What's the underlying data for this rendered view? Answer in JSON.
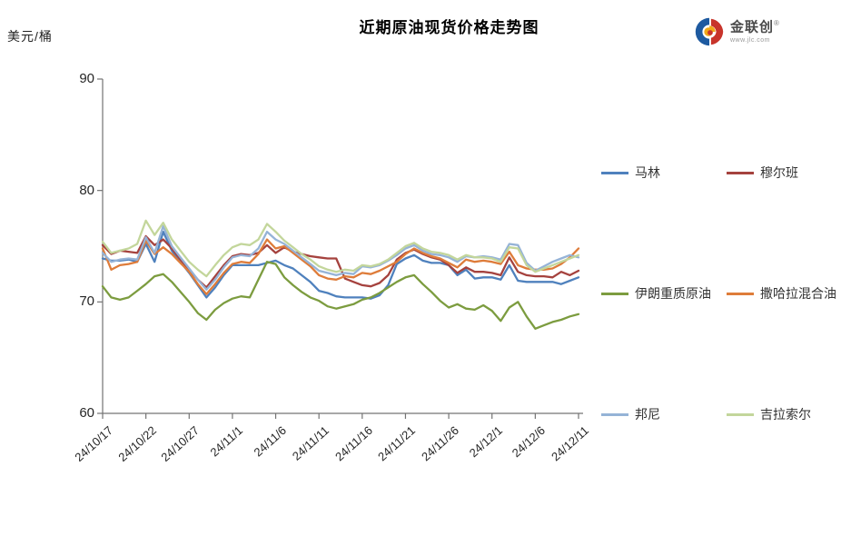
{
  "logo": {
    "brand": "金联创",
    "reg": "®",
    "site": "www.jlc.com"
  },
  "chart_data": {
    "type": "line",
    "title": "近期原油现货价格走势图",
    "unit_label": "美元/桶",
    "xlabel": "",
    "ylabel": "美元/桶",
    "ylim": [
      60,
      90
    ],
    "yticks": [
      60,
      70,
      80,
      90
    ],
    "grid": false,
    "legend_position": "right",
    "x_count": 56,
    "label_every": 5,
    "x_labels": [
      "24/10/17",
      "24/10/22",
      "24/10/27",
      "24/11/1",
      "24/11/6",
      "24/11/11",
      "24/11/16",
      "24/11/21",
      "24/11/26",
      "24/12/1",
      "24/12/6",
      "24/12/11"
    ],
    "axis_color": "#737373",
    "series": [
      {
        "name": "马林",
        "color": "#4F81BD",
        "values": [
          73.9,
          73.7,
          73.7,
          73.8,
          73.6,
          75.2,
          73.6,
          76.3,
          74.6,
          73.6,
          72.6,
          71.5,
          70.4,
          71.3,
          72.4,
          73.3,
          73.3,
          73.3,
          73.3,
          73.5,
          73.7,
          73.3,
          73.0,
          72.4,
          71.8,
          71.0,
          70.8,
          70.5,
          70.4,
          70.4,
          70.4,
          70.3,
          70.6,
          71.5,
          73.4,
          73.9,
          74.2,
          73.7,
          73.5,
          73.5,
          73.3,
          72.4,
          72.9,
          72.1,
          72.2,
          72.2,
          72.0,
          73.3,
          71.9,
          71.8,
          71.8,
          71.8,
          71.8,
          71.6,
          71.9,
          72.2
        ]
      },
      {
        "name": "穆尔班",
        "color": "#A5423E",
        "values": [
          75.1,
          74.3,
          74.6,
          74.5,
          74.4,
          75.9,
          75.1,
          75.6,
          74.8,
          73.8,
          72.9,
          72.0,
          71.3,
          72.3,
          73.3,
          74.1,
          74.3,
          74.2,
          74.4,
          75.1,
          74.4,
          74.9,
          74.5,
          74.3,
          74.1,
          74.0,
          73.9,
          73.9,
          72.1,
          71.8,
          71.5,
          71.4,
          71.7,
          72.4,
          73.8,
          74.4,
          74.7,
          74.3,
          74.0,
          73.8,
          73.3,
          72.6,
          73.1,
          72.7,
          72.7,
          72.6,
          72.4,
          74.0,
          72.7,
          72.4,
          72.3,
          72.3,
          72.2,
          72.7,
          72.4,
          72.8
        ]
      },
      {
        "name": "伊朗重质原油",
        "color": "#7C9C3F",
        "values": [
          71.4,
          70.4,
          70.2,
          70.4,
          71.0,
          71.6,
          72.3,
          72.5,
          71.8,
          70.9,
          70.0,
          69.0,
          68.4,
          69.3,
          69.9,
          70.3,
          70.5,
          70.4,
          72.0,
          73.6,
          73.4,
          72.2,
          71.5,
          70.9,
          70.4,
          70.1,
          69.6,
          69.4,
          69.6,
          69.8,
          70.2,
          70.4,
          70.8,
          71.3,
          71.8,
          72.2,
          72.4,
          71.6,
          70.9,
          70.1,
          69.5,
          69.8,
          69.4,
          69.3,
          69.7,
          69.2,
          68.3,
          69.5,
          70.0,
          68.7,
          67.6,
          67.9,
          68.2,
          68.4,
          68.7,
          68.9
        ]
      },
      {
        "name": "撒哈拉混合油",
        "color": "#DE7C3A",
        "values": [
          74.8,
          72.9,
          73.3,
          73.4,
          73.6,
          75.5,
          74.3,
          74.9,
          74.3,
          73.5,
          72.7,
          71.6,
          70.7,
          71.6,
          72.6,
          73.4,
          73.6,
          73.5,
          74.3,
          75.6,
          74.8,
          75.0,
          74.4,
          73.8,
          73.2,
          72.4,
          72.1,
          72.0,
          72.3,
          72.2,
          72.6,
          72.5,
          72.8,
          73.2,
          73.6,
          74.3,
          74.8,
          74.4,
          74.1,
          73.9,
          73.5,
          73.1,
          73.8,
          73.6,
          73.7,
          73.6,
          73.4,
          74.5,
          73.3,
          73.0,
          72.9,
          72.9,
          73.0,
          73.4,
          74.0,
          74.8
        ]
      },
      {
        "name": "邦尼",
        "color": "#95B3D7",
        "values": [
          74.4,
          73.6,
          73.8,
          73.9,
          73.8,
          75.8,
          74.4,
          76.8,
          75.0,
          74.0,
          73.0,
          72.0,
          71.1,
          72.0,
          73.1,
          74.0,
          74.2,
          74.1,
          74.8,
          76.3,
          75.6,
          75.2,
          74.6,
          74.0,
          73.4,
          72.8,
          72.6,
          72.4,
          72.6,
          72.5,
          73.2,
          73.1,
          73.3,
          73.7,
          74.2,
          74.8,
          75.1,
          74.6,
          74.3,
          74.2,
          74.0,
          73.6,
          74.1,
          74.0,
          74.1,
          74.0,
          73.8,
          75.2,
          75.1,
          73.5,
          72.8,
          73.2,
          73.6,
          73.9,
          74.2,
          74.0
        ]
      },
      {
        "name": "吉拉索尔",
        "color": "#C3D69B",
        "values": [
          75.4,
          74.4,
          74.6,
          74.8,
          75.2,
          77.3,
          76.0,
          77.1,
          75.6,
          74.6,
          73.6,
          72.9,
          72.3,
          73.3,
          74.2,
          74.9,
          75.2,
          75.1,
          75.6,
          77.0,
          76.3,
          75.5,
          74.9,
          74.3,
          73.8,
          73.2,
          72.9,
          72.7,
          72.9,
          72.8,
          73.3,
          73.2,
          73.4,
          73.8,
          74.4,
          75.0,
          75.3,
          74.8,
          74.5,
          74.4,
          74.2,
          73.8,
          74.2,
          74.0,
          74.0,
          73.9,
          73.6,
          74.9,
          74.8,
          73.3,
          72.7,
          73.0,
          73.3,
          73.6,
          73.9,
          74.2
        ]
      }
    ]
  }
}
